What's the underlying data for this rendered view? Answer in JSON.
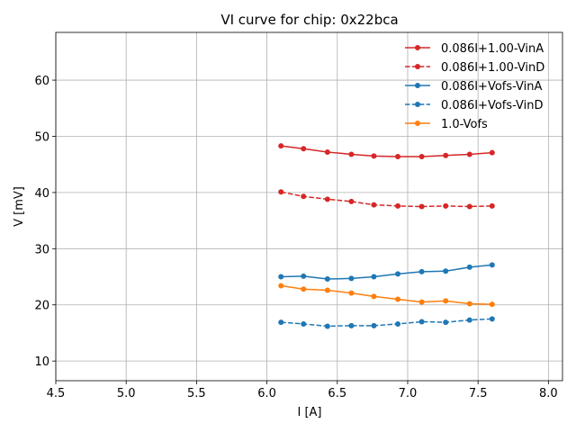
{
  "chart_data": {
    "type": "line",
    "title": "VI curve for chip: 0x22bca",
    "xlabel": "I [A]",
    "ylabel": "V [mV]",
    "xlim": [
      4.5,
      8.1
    ],
    "ylim": [
      6.5,
      68.5
    ],
    "xticks": [
      4.5,
      5.0,
      5.5,
      6.0,
      6.5,
      7.0,
      7.5,
      8.0
    ],
    "xtick_labels": [
      "4.5",
      "5.0",
      "5.5",
      "6.0",
      "6.5",
      "7.0",
      "7.5",
      "8.0"
    ],
    "yticks": [
      10,
      20,
      30,
      40,
      50,
      60
    ],
    "ytick_labels": [
      "10",
      "20",
      "30",
      "40",
      "50",
      "60"
    ],
    "grid": true,
    "legend_position": "top-right",
    "x": [
      6.1,
      6.26,
      6.43,
      6.6,
      6.76,
      6.93,
      7.1,
      7.27,
      7.44,
      7.6
    ],
    "series": [
      {
        "name": "0.086I+1.00-VinA",
        "color": "#d62728",
        "linestyle": "solid",
        "values": [
          48.3,
          47.8,
          47.2,
          46.8,
          46.5,
          46.4,
          46.4,
          46.6,
          46.8,
          47.1
        ]
      },
      {
        "name": "0.086I+1.00-VinD",
        "color": "#d62728",
        "linestyle": "dashed",
        "values": [
          40.1,
          39.3,
          38.8,
          38.4,
          37.8,
          37.6,
          37.5,
          37.6,
          37.5,
          37.6
        ]
      },
      {
        "name": "0.086I+Vofs-VinA",
        "color": "#1f77b4",
        "linestyle": "solid",
        "values": [
          25.0,
          25.1,
          24.6,
          24.7,
          25.0,
          25.5,
          25.9,
          26.0,
          26.7,
          27.1
        ]
      },
      {
        "name": "0.086I+Vofs-VinD",
        "color": "#1f77b4",
        "linestyle": "dashed",
        "values": [
          16.9,
          16.6,
          16.2,
          16.3,
          16.3,
          16.6,
          17.0,
          16.9,
          17.3,
          17.5
        ]
      },
      {
        "name": "1.0-Vofs",
        "color": "#ff7f0e",
        "linestyle": "solid",
        "values": [
          23.4,
          22.8,
          22.6,
          22.1,
          21.5,
          21.0,
          20.5,
          20.7,
          20.2,
          20.1
        ]
      }
    ]
  }
}
